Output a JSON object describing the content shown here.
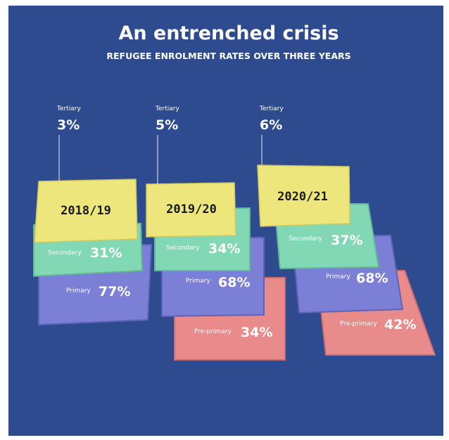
{
  "header": {
    "title": "An entrenched crisis",
    "subtitle": "REFUGEE ENROLMENT RATES OVER THREE YEARS"
  },
  "years": [
    {
      "year": "2018/19",
      "tertiary": {
        "label": "Tertiary",
        "value": "3%"
      },
      "secondary": {
        "label": "Secondary",
        "value": "31%"
      },
      "primary": {
        "label": "Primary",
        "value": "77%"
      }
    },
    {
      "year": "2019/20",
      "tertiary": {
        "label": "Tertiary",
        "value": "5%"
      },
      "secondary": {
        "label": "Secondary",
        "value": "34%"
      },
      "primary": {
        "label": "Primary",
        "value": "68%"
      },
      "pre_primary": {
        "label": "Pre-primary",
        "value": "34%"
      }
    },
    {
      "year": "2020/21",
      "tertiary": {
        "label": "Tertiary",
        "value": "6%"
      },
      "secondary": {
        "label": "Secondary",
        "value": "37%"
      },
      "primary": {
        "label": "Primary",
        "value": "68%"
      },
      "pre_primary": {
        "label": "Pre-primary",
        "value": "42%"
      }
    }
  ]
}
